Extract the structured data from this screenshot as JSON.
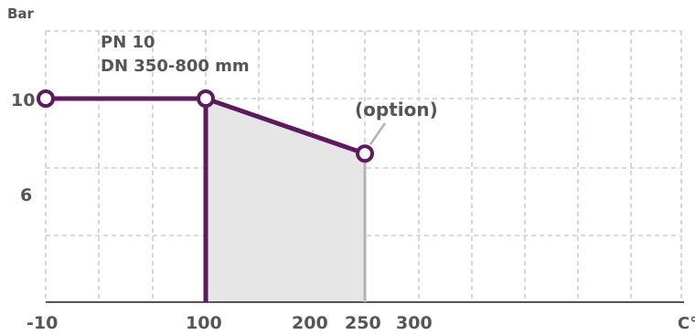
{
  "chart_data": {
    "type": "line",
    "ylabel": "Bar",
    "xlabel": "C°",
    "annotation_text": [
      "PN 10",
      "DN 350-800 mm"
    ],
    "x_ticks": [
      "-10",
      "100",
      "200",
      "250",
      "300"
    ],
    "y_ticks": [
      "10",
      "6"
    ],
    "series": [
      {
        "x": [
          -10,
          100,
          250
        ],
        "values": [
          10,
          10,
          7.3
        ]
      }
    ],
    "shaded_region": {
      "x": [
        100,
        250
      ],
      "upper": [
        10,
        7.3
      ],
      "lower": 0
    },
    "verticals": [
      {
        "x": 100,
        "y_top": 10,
        "style": "series"
      },
      {
        "x": 250,
        "y_top": 7.3,
        "style": "option"
      }
    ],
    "callout": {
      "label": "(option)",
      "x": 250,
      "y": 7.3
    },
    "grid": true,
    "colors": {
      "series": "#5e1a5e",
      "shade": "#e6e6e6",
      "grid": "#c4c4c4",
      "text": "#555555",
      "option_line": "#b3b3b3"
    }
  }
}
